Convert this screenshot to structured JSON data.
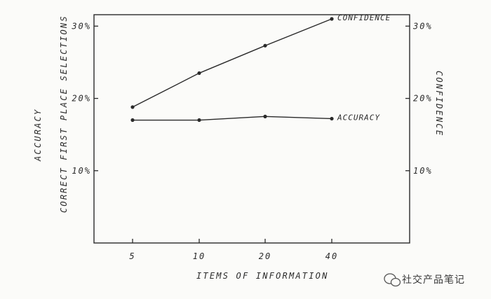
{
  "chart_data": {
    "type": "line",
    "xlabel": "ITEMS OF INFORMATION",
    "ylabel_left_primary": "ACCURACY",
    "ylabel_left_secondary": "CORRECT FIRST PLACE SELECTIONS",
    "ylabel_right": "CONFIDENCE",
    "categories": [
      "5",
      "10",
      "20",
      "40"
    ],
    "ylim": [
      0,
      31
    ],
    "yticks_left": [
      {
        "value": 10,
        "label": "10%"
      },
      {
        "value": 20,
        "label": "20%"
      },
      {
        "value": 30,
        "label": "30%"
      }
    ],
    "yticks_right": [
      {
        "value": 10,
        "label": "10%"
      },
      {
        "value": 20,
        "label": "20%"
      },
      {
        "value": 30,
        "label": "30%"
      }
    ],
    "series": [
      {
        "name": "CONFIDENCE",
        "values": [
          18.8,
          23.5,
          27.3,
          31.0
        ]
      },
      {
        "name": "ACCURACY",
        "values": [
          17.0,
          17.0,
          17.5,
          17.2
        ]
      }
    ],
    "grid": false,
    "legend": "series labels at line ends"
  },
  "watermark": "社交产品笔记",
  "colors": {
    "ink": "#2a2a2a",
    "paper": "#fbfbf9"
  }
}
